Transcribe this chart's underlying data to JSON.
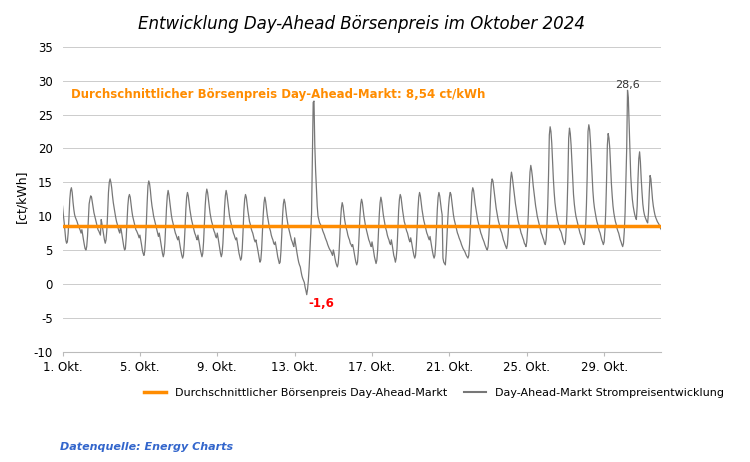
{
  "title": "Entwicklung Day-Ahead Börsenpreis im Oktober 2024",
  "ylabel": "[ct/kWh]",
  "avg_price": 8.54,
  "avg_label": "Durchschnittlicher Börsenpreis Day-Ahead-Markt: 8,54 ct/kWh",
  "min_label": "-1,6",
  "max_label": "28,6",
  "ylim": [
    -10,
    36
  ],
  "yticks": [
    -10,
    -5,
    0,
    5,
    10,
    15,
    20,
    25,
    30,
    35
  ],
  "source_text": "Datenquelle: Energy Charts",
  "legend_avg": "Durchschnittlicher Börsenpreis Day-Ahead-Markt",
  "legend_line": "Day-Ahead-Markt Strompreisentwicklung",
  "line_color": "#777777",
  "avg_color": "#FF8C00",
  "source_color": "#3366CC",
  "background_color": "#FFFFFF",
  "xtick_labels": [
    "1. Okt.",
    "5. Okt.",
    "9. Okt.",
    "13. Okt.",
    "17. Okt.",
    "21. Okt.",
    "25. Okt.",
    "29. Okt."
  ],
  "prices": [
    11.5,
    10.2,
    9.1,
    7.8,
    6.5,
    6.0,
    6.2,
    7.5,
    9.8,
    12.5,
    13.8,
    14.2,
    13.5,
    12.1,
    11.0,
    10.2,
    9.8,
    9.5,
    9.2,
    8.8,
    8.5,
    8.2,
    7.9,
    7.5,
    8.0,
    7.2,
    6.5,
    5.8,
    5.2,
    5.0,
    5.5,
    7.0,
    9.5,
    11.8,
    12.5,
    13.0,
    12.8,
    12.0,
    11.2,
    10.5,
    10.0,
    9.5,
    9.0,
    8.5,
    8.0,
    7.8,
    7.5,
    7.2,
    9.5,
    8.8,
    8.0,
    7.2,
    6.5,
    6.0,
    6.5,
    8.0,
    10.5,
    13.5,
    15.0,
    15.5,
    15.0,
    14.2,
    13.0,
    12.0,
    11.2,
    10.5,
    9.8,
    9.2,
    8.8,
    8.2,
    7.8,
    7.5,
    8.5,
    7.8,
    7.0,
    6.2,
    5.5,
    5.0,
    5.2,
    6.8,
    9.2,
    11.5,
    12.8,
    13.2,
    12.8,
    11.8,
    10.8,
    10.0,
    9.5,
    9.0,
    8.5,
    8.0,
    7.8,
    7.5,
    7.2,
    6.8,
    7.2,
    6.5,
    5.8,
    5.0,
    4.5,
    4.2,
    4.8,
    6.5,
    9.0,
    12.0,
    14.5,
    15.2,
    14.8,
    13.8,
    12.5,
    11.5,
    10.8,
    10.0,
    9.5,
    9.0,
    8.5,
    8.0,
    7.5,
    7.0,
    7.5,
    6.8,
    6.0,
    5.2,
    4.5,
    4.0,
    4.5,
    6.0,
    8.5,
    11.2,
    13.0,
    13.8,
    13.2,
    12.2,
    11.2,
    10.2,
    9.5,
    9.0,
    8.5,
    8.0,
    7.5,
    7.2,
    6.8,
    6.5,
    7.0,
    6.2,
    5.5,
    4.8,
    4.2,
    3.8,
    4.2,
    5.8,
    8.2,
    11.0,
    12.8,
    13.5,
    13.0,
    12.0,
    11.0,
    10.2,
    9.5,
    9.0,
    8.5,
    8.0,
    7.5,
    7.2,
    6.8,
    6.5,
    7.2,
    6.5,
    5.8,
    5.0,
    4.5,
    4.0,
    4.5,
    6.2,
    8.8,
    11.5,
    13.2,
    14.0,
    13.5,
    12.5,
    11.5,
    10.5,
    9.8,
    9.2,
    8.8,
    8.2,
    7.8,
    7.5,
    7.0,
    6.8,
    7.5,
    6.8,
    6.0,
    5.2,
    4.5,
    4.0,
    4.5,
    6.0,
    8.5,
    11.2,
    13.0,
    13.8,
    13.2,
    12.2,
    11.2,
    10.2,
    9.5,
    9.0,
    8.5,
    8.0,
    7.5,
    7.2,
    6.8,
    6.5,
    6.8,
    6.0,
    5.2,
    4.5,
    4.0,
    3.5,
    3.8,
    5.2,
    7.8,
    10.8,
    12.5,
    13.2,
    12.8,
    11.8,
    10.8,
    10.0,
    9.2,
    8.8,
    8.2,
    7.8,
    7.5,
    7.0,
    6.5,
    6.2,
    6.5,
    5.8,
    5.2,
    4.5,
    3.8,
    3.2,
    3.5,
    5.0,
    7.5,
    10.2,
    12.0,
    12.8,
    12.2,
    11.2,
    10.2,
    9.5,
    8.8,
    8.2,
    7.8,
    7.2,
    6.8,
    6.5,
    6.0,
    5.8,
    6.2,
    5.5,
    4.8,
    4.0,
    3.5,
    3.0,
    3.2,
    4.8,
    7.2,
    10.0,
    11.8,
    12.5,
    12.0,
    11.0,
    10.0,
    9.2,
    8.5,
    8.0,
    7.5,
    7.0,
    6.5,
    6.2,
    5.8,
    5.5,
    6.8,
    6.0,
    5.2,
    4.5,
    3.8,
    3.2,
    2.8,
    2.5,
    1.8,
    1.2,
    0.8,
    0.5,
    0.2,
    -0.5,
    -1.0,
    -1.6,
    -0.8,
    0.5,
    2.5,
    5.0,
    7.5,
    10.5,
    18.5,
    26.8,
    27.0,
    20.5,
    16.8,
    14.2,
    11.5,
    10.0,
    9.5,
    9.0,
    8.8,
    8.5,
    8.2,
    7.8,
    7.5,
    7.2,
    6.8,
    6.5,
    6.2,
    5.8,
    5.5,
    5.2,
    5.0,
    4.8,
    4.5,
    4.2,
    5.0,
    4.5,
    3.8,
    3.2,
    2.8,
    2.5,
    3.0,
    4.5,
    6.8,
    9.5,
    11.2,
    12.0,
    11.5,
    10.5,
    9.5,
    8.8,
    8.2,
    7.8,
    7.2,
    6.8,
    6.5,
    6.0,
    5.8,
    5.5,
    5.8,
    5.2,
    4.5,
    3.8,
    3.2,
    2.8,
    3.2,
    4.8,
    7.2,
    10.0,
    11.8,
    12.5,
    12.0,
    11.0,
    10.0,
    9.2,
    8.5,
    8.0,
    7.5,
    7.0,
    6.5,
    6.2,
    5.8,
    5.5,
    6.2,
    5.5,
    4.8,
    4.0,
    3.5,
    3.0,
    3.5,
    5.0,
    7.5,
    10.2,
    12.0,
    12.8,
    12.2,
    11.2,
    10.2,
    9.5,
    8.8,
    8.2,
    7.8,
    7.2,
    6.8,
    6.5,
    6.0,
    5.8,
    6.5,
    5.8,
    5.0,
    4.2,
    3.8,
    3.2,
    3.8,
    5.2,
    7.8,
    10.8,
    12.5,
    13.2,
    12.8,
    11.8,
    10.8,
    10.0,
    9.2,
    8.8,
    8.2,
    7.8,
    7.5,
    7.0,
    6.5,
    6.2,
    6.8,
    6.2,
    5.5,
    4.8,
    4.2,
    3.8,
    4.2,
    5.8,
    8.2,
    11.0,
    12.8,
    13.5,
    13.0,
    12.0,
    11.0,
    10.2,
    9.5,
    9.0,
    8.5,
    8.0,
    7.5,
    7.2,
    6.8,
    6.5,
    7.0,
    6.2,
    5.5,
    4.8,
    4.2,
    3.8,
    4.2,
    5.8,
    8.2,
    11.0,
    12.8,
    13.5,
    13.0,
    12.0,
    11.0,
    10.2,
    3.8,
    3.2,
    3.0,
    2.8,
    4.5,
    7.0,
    9.5,
    11.5,
    12.8,
    13.5,
    13.2,
    12.2,
    11.2,
    10.2,
    9.5,
    9.0,
    8.5,
    8.0,
    7.5,
    7.2,
    6.8,
    6.5,
    6.2,
    5.8,
    5.5,
    5.2,
    5.0,
    4.8,
    4.5,
    4.2,
    4.0,
    3.8,
    4.2,
    5.8,
    8.2,
    11.0,
    13.5,
    14.2,
    13.8,
    12.8,
    11.8,
    11.0,
    10.2,
    9.5,
    9.0,
    8.5,
    8.0,
    7.5,
    7.2,
    6.8,
    6.5,
    6.2,
    5.8,
    5.5,
    5.2,
    5.0,
    5.5,
    7.2,
    9.5,
    12.5,
    14.8,
    15.5,
    15.2,
    14.2,
    13.2,
    12.2,
    11.2,
    10.5,
    9.8,
    9.2,
    8.8,
    8.2,
    7.8,
    7.5,
    7.0,
    6.5,
    6.2,
    5.8,
    5.5,
    5.2,
    5.8,
    7.5,
    10.0,
    13.2,
    15.5,
    16.5,
    15.8,
    14.8,
    13.8,
    12.8,
    11.8,
    11.0,
    10.2,
    9.5,
    9.0,
    8.5,
    8.0,
    7.5,
    7.2,
    6.8,
    6.5,
    6.0,
    5.8,
    5.5,
    6.2,
    8.0,
    10.5,
    14.0,
    16.5,
    17.5,
    16.8,
    15.8,
    14.5,
    13.5,
    12.5,
    11.5,
    10.8,
    10.0,
    9.5,
    9.0,
    8.5,
    8.0,
    7.5,
    7.2,
    6.8,
    6.5,
    6.0,
    5.8,
    6.5,
    8.5,
    11.5,
    16.0,
    22.0,
    23.2,
    22.5,
    20.8,
    18.2,
    15.5,
    13.5,
    12.0,
    11.0,
    10.2,
    9.5,
    9.0,
    8.5,
    8.0,
    7.8,
    7.5,
    7.0,
    6.5,
    6.2,
    5.8,
    6.2,
    8.2,
    11.0,
    15.5,
    21.5,
    23.0,
    22.2,
    20.5,
    18.0,
    15.2,
    13.2,
    11.8,
    10.8,
    10.0,
    9.5,
    9.0,
    8.5,
    8.0,
    7.5,
    7.2,
    6.8,
    6.5,
    6.0,
    5.8,
    6.5,
    8.5,
    11.5,
    16.0,
    22.5,
    23.5,
    22.8,
    21.0,
    18.5,
    15.8,
    13.8,
    12.2,
    11.2,
    10.5,
    9.8,
    9.2,
    8.8,
    8.2,
    7.8,
    7.5,
    7.0,
    6.5,
    6.2,
    5.8,
    6.2,
    8.0,
    10.8,
    15.2,
    20.5,
    22.2,
    21.5,
    20.0,
    17.5,
    14.8,
    13.0,
    11.5,
    10.5,
    9.8,
    9.2,
    8.8,
    8.2,
    7.8,
    7.5,
    7.0,
    6.5,
    6.2,
    5.8,
    5.5,
    6.0,
    7.8,
    10.5,
    15.0,
    20.0,
    28.6,
    27.5,
    23.5,
    19.5,
    16.0,
    14.0,
    12.5,
    11.5,
    10.8,
    10.2,
    9.8,
    9.5,
    11.5,
    15.5,
    18.5,
    19.5,
    18.0,
    15.5,
    13.5,
    11.8,
    10.8,
    10.2,
    9.8,
    9.5,
    9.2,
    9.0,
    10.5,
    13.5,
    16.0,
    15.5,
    14.0,
    12.5,
    11.5,
    10.8,
    10.2,
    9.8,
    9.5,
    9.2,
    9.0,
    8.8,
    8.5,
    8.2,
    8.0
  ]
}
